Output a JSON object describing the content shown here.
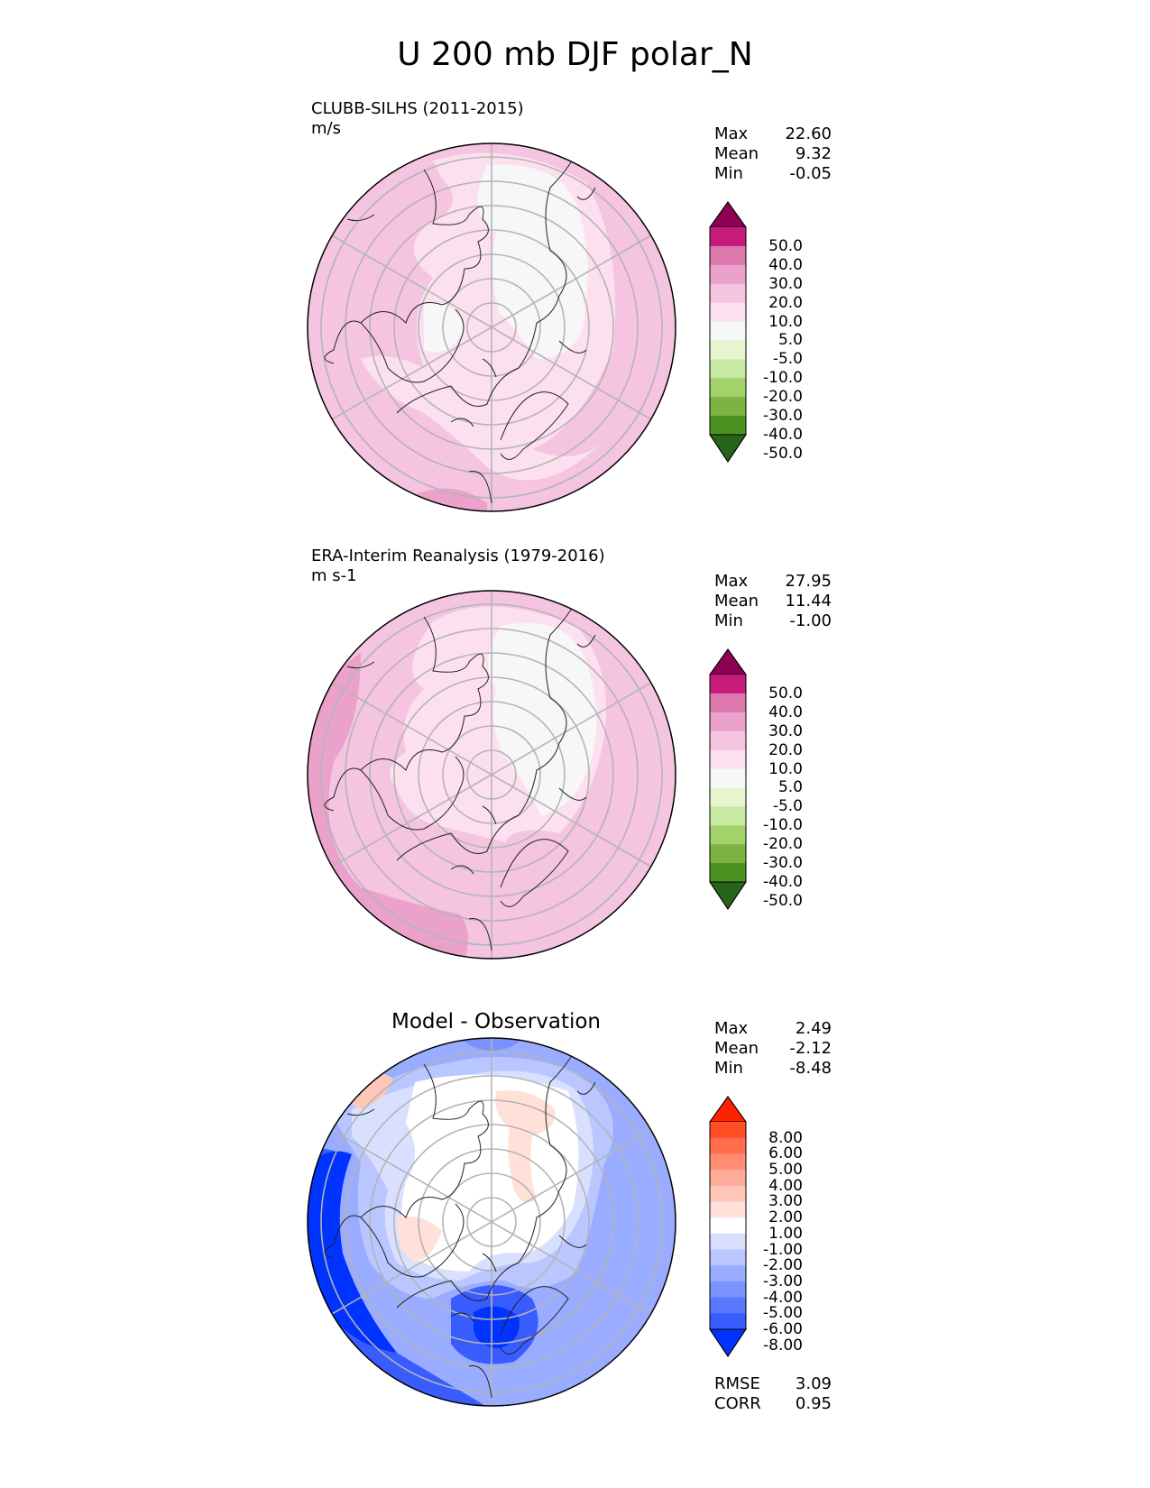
{
  "title": "U 200 mb DJF polar_N",
  "panels": [
    {
      "title": "CLUBB-SILHS (2011-2015)",
      "units": "m/s",
      "stats": {
        "max_label": "Max",
        "max": "22.60",
        "mean_label": "Mean",
        "mean": "9.32",
        "min_label": "Min",
        "min": "-0.05"
      },
      "colorbar": {
        "ticks": [
          "50.0",
          "40.0",
          "30.0",
          "20.0",
          "10.0",
          "5.0",
          "-5.0",
          "-10.0",
          "-20.0",
          "-30.0",
          "-40.0",
          "-50.0"
        ],
        "colors": [
          "#8e0152",
          "#c51b7d",
          "#de77ae",
          "#eaa1cb",
          "#f4c4e1",
          "#fde0ef",
          "#f7f7f7",
          "#e6f5d0",
          "#c9e8a2",
          "#a3d16a",
          "#7cb342",
          "#4d9221",
          "#276419"
        ]
      }
    },
    {
      "title": "ERA-Interim Reanalysis (1979-2016)",
      "units": "m s-1",
      "stats": {
        "max_label": "Max",
        "max": "27.95",
        "mean_label": "Mean",
        "mean": "11.44",
        "min_label": "Min",
        "min": "-1.00"
      },
      "colorbar": {
        "ticks": [
          "50.0",
          "40.0",
          "30.0",
          "20.0",
          "10.0",
          "5.0",
          "-5.0",
          "-10.0",
          "-20.0",
          "-30.0",
          "-40.0",
          "-50.0"
        ],
        "colors": [
          "#8e0152",
          "#c51b7d",
          "#de77ae",
          "#eaa1cb",
          "#f4c4e1",
          "#fde0ef",
          "#f7f7f7",
          "#e6f5d0",
          "#c9e8a2",
          "#a3d16a",
          "#7cb342",
          "#4d9221",
          "#276419"
        ]
      }
    },
    {
      "title": "Model - Observation",
      "stats": {
        "max_label": "Max",
        "max": "2.49",
        "mean_label": "Mean",
        "mean": "-2.12",
        "min_label": "Min",
        "min": "-8.48"
      },
      "colorbar": {
        "ticks": [
          "8.00",
          "6.00",
          "5.00",
          "4.00",
          "3.00",
          "2.00",
          "1.00",
          "-1.00",
          "-2.00",
          "-3.00",
          "-4.00",
          "-5.00",
          "-6.00",
          "-8.00"
        ],
        "colors": [
          "#ff2200",
          "#ff4d26",
          "#ff6d4d",
          "#ff8c73",
          "#ffab99",
          "#ffc7b9",
          "#ffe1d9",
          "#ffffff",
          "#d9e0ff",
          "#b9c6ff",
          "#99acff",
          "#7992ff",
          "#5977ff",
          "#395cff",
          "#0033ff"
        ]
      },
      "metrics": {
        "rmse_label": "RMSE",
        "rmse": "3.09",
        "corr_label": "CORR",
        "corr": "0.95"
      }
    }
  ],
  "map_colors": {
    "p0": {
      "base": "#f4c4e1",
      "light": "#fde0ef",
      "white": "#f7f7f7",
      "mid": "#eaa1cb"
    },
    "p1": {
      "base": "#f4c4e1",
      "light": "#fde0ef",
      "white": "#f7f7f7",
      "mid": "#eaa1cb"
    },
    "p2": {
      "blue1": "#d9e0ff",
      "blue2": "#b9c6ff",
      "blue3": "#99acff",
      "blue4": "#7992ff",
      "blue5": "#5977ff",
      "blue6": "#395cff",
      "red1": "#ffe1d9",
      "white": "#ffffff"
    }
  }
}
